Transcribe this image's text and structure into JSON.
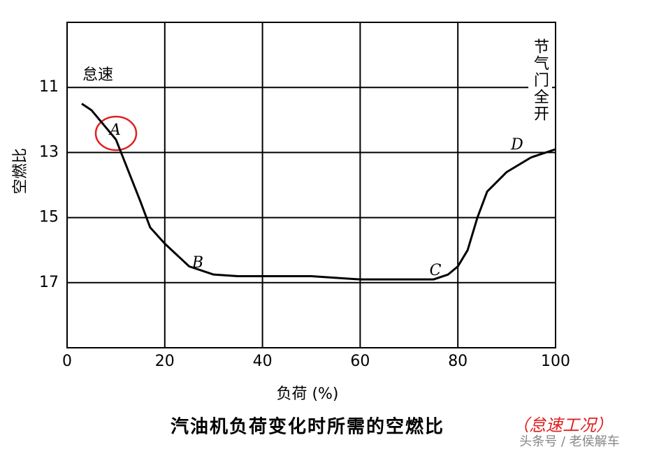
{
  "chart_data": {
    "type": "line",
    "xlabel": "负荷 (%)",
    "ylabel": "空燃比",
    "caption": "汽油机负荷变化时所需的空燃比",
    "caption_note": "（怠速工况）",
    "watermark": "头条号 / 老侯解车",
    "annotations": [
      "怠速",
      "节气门全开",
      "A",
      "B",
      "C",
      "D"
    ],
    "x": [
      3,
      5,
      10,
      15,
      17,
      20,
      25,
      30,
      35,
      50,
      60,
      70,
      75,
      78,
      80,
      82,
      84,
      86,
      90,
      95,
      100
    ],
    "series": [
      {
        "color": "#000000",
        "values": [
          11.5,
          11.7,
          12.6,
          14.5,
          15.3,
          15.8,
          16.5,
          16.75,
          16.8,
          16.8,
          16.9,
          16.9,
          16.9,
          16.75,
          16.5,
          16.0,
          15.0,
          14.2,
          13.6,
          13.15,
          12.9
        ]
      }
    ],
    "xlim": [
      0,
      100
    ],
    "xticks": [
      0,
      20,
      40,
      60,
      80,
      100
    ],
    "ylim": [
      19,
      9
    ],
    "yticks": [
      11,
      13,
      15,
      17
    ],
    "grid": true
  }
}
